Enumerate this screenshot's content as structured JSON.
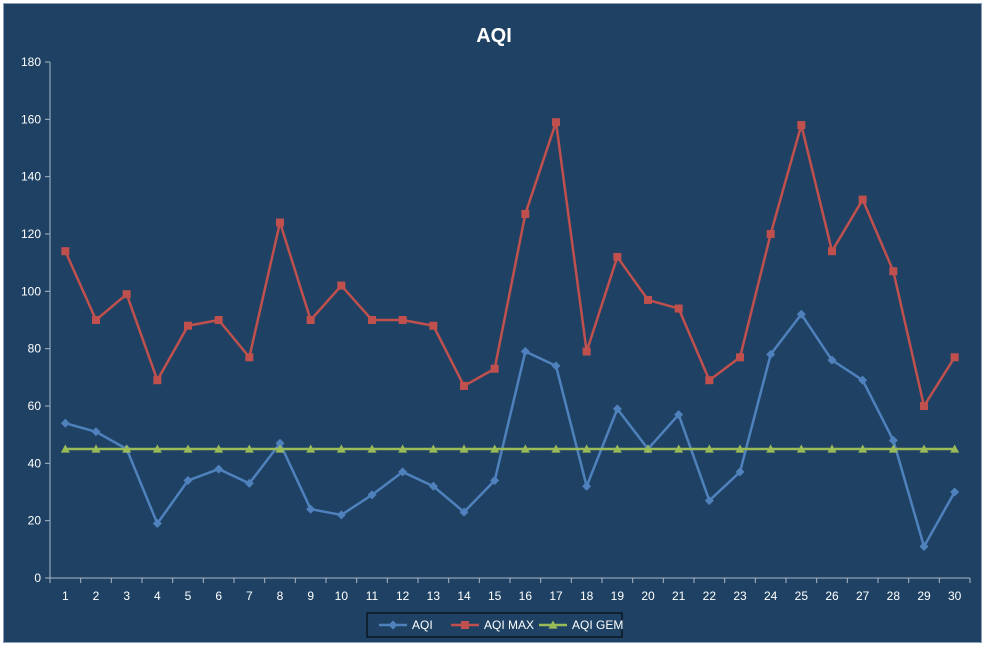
{
  "chart_data": {
    "type": "line",
    "title": "AQI",
    "xlabel": "",
    "ylabel": "",
    "categories": [
      "1",
      "2",
      "3",
      "4",
      "5",
      "6",
      "7",
      "8",
      "9",
      "10",
      "11",
      "12",
      "13",
      "14",
      "15",
      "16",
      "17",
      "18",
      "19",
      "20",
      "21",
      "22",
      "23",
      "24",
      "25",
      "26",
      "27",
      "28",
      "29",
      "30"
    ],
    "ylim": [
      0,
      180
    ],
    "yticks": [
      0,
      20,
      40,
      60,
      80,
      100,
      120,
      140,
      160,
      180
    ],
    "grid": false,
    "legend_position": "bottom",
    "series": [
      {
        "name": "AQI",
        "color": "#4f81bd",
        "marker": "diamond",
        "values": [
          54,
          51,
          45,
          19,
          34,
          38,
          33,
          47,
          24,
          22,
          29,
          37,
          32,
          23,
          34,
          79,
          74,
          32,
          59,
          45,
          57,
          27,
          37,
          78,
          92,
          76,
          69,
          48,
          11,
          30
        ]
      },
      {
        "name": "AQI MAX",
        "color": "#c0504d",
        "marker": "square",
        "values": [
          114,
          90,
          99,
          69,
          88,
          90,
          77,
          124,
          90,
          102,
          90,
          90,
          88,
          67,
          73,
          127,
          159,
          79,
          112,
          97,
          94,
          69,
          77,
          120,
          158,
          114,
          132,
          107,
          60,
          77
        ]
      },
      {
        "name": "AQI GEM",
        "color": "#9bbb59",
        "marker": "triangle",
        "values": [
          45,
          45,
          45,
          45,
          45,
          45,
          45,
          45,
          45,
          45,
          45,
          45,
          45,
          45,
          45,
          45,
          45,
          45,
          45,
          45,
          45,
          45,
          45,
          45,
          45,
          45,
          45,
          45,
          45,
          45
        ]
      }
    ]
  }
}
